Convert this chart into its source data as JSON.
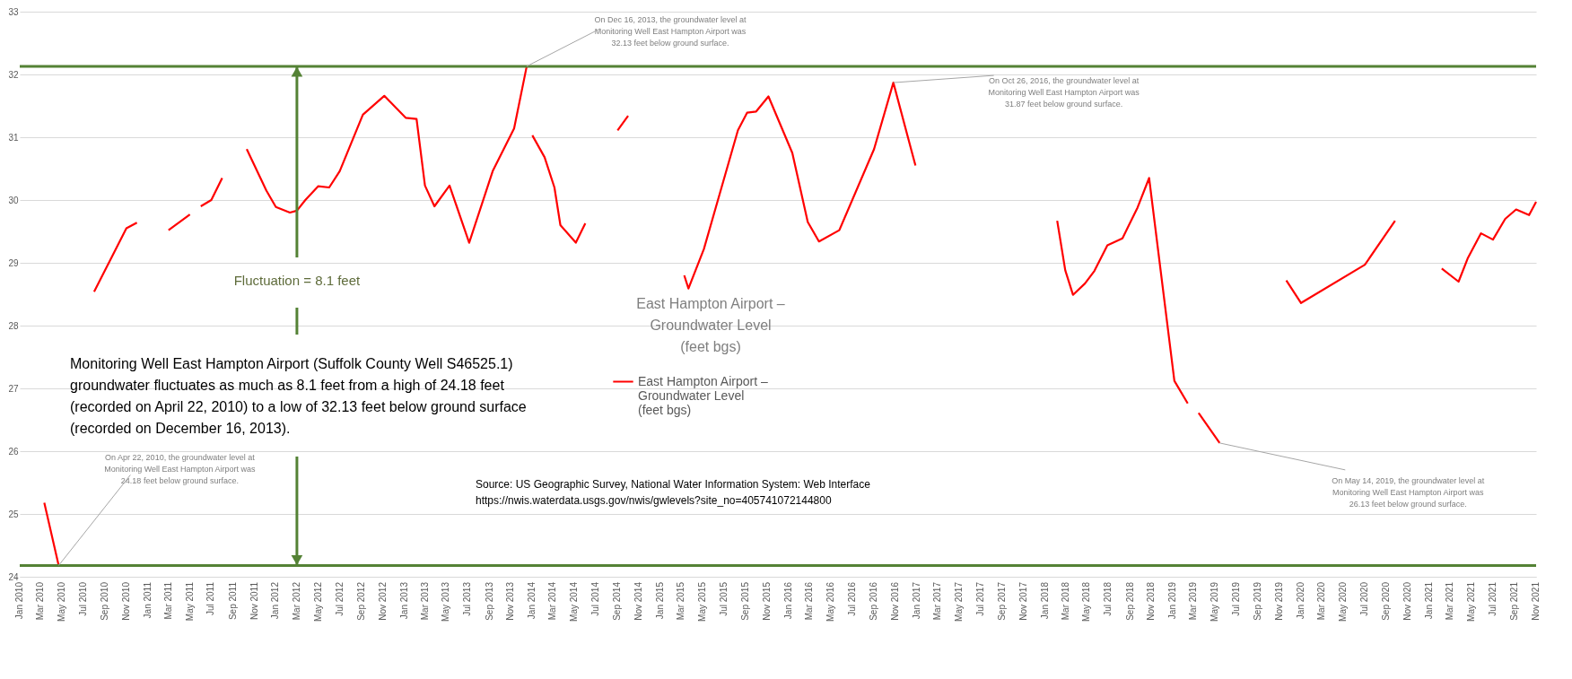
{
  "chart_data": {
    "type": "line",
    "title": "East Hampton Airport – Groundwater Level (feet bgs)",
    "series": [
      {
        "name": "East Hampton Airport – Groundwater Level (feet bgs)",
        "color": "#ff0000",
        "x": [
          "2010-03-12",
          "2010-04-22",
          "2010-06-01",
          "2010-08-01",
          "2010-11-01",
          "2010-12-01",
          "2011-01-15",
          "2011-03-01",
          "2011-05-01",
          "2011-05-20",
          "2011-06-01",
          "2011-07-01",
          "2011-08-01",
          "2011-09-01",
          "2011-10-10",
          "2011-12-05",
          "2012-01-01",
          "2012-02-10",
          "2012-03-01",
          "2012-03-25",
          "2012-05-01",
          "2012-06-01",
          "2012-07-01",
          "2012-09-05",
          "2012-11-05",
          "2013-01-05",
          "2013-02-05",
          "2013-03-01",
          "2013-03-28",
          "2013-05-10",
          "2013-07-05",
          "2013-09-10",
          "2013-11-10",
          "2013-12-16",
          "2013-12-25",
          "2014-01-01",
          "2014-02-05",
          "2014-03-05",
          "2014-03-22",
          "2014-05-05",
          "2014-06-01",
          "2014-07-01",
          "2014-09-01",
          "2014-10-01",
          "2014-12-01",
          "2015-03-10",
          "2015-03-22",
          "2015-05-05",
          "2015-08-10",
          "2015-09-05",
          "2015-10-01",
          "2015-11-05",
          "2016-01-12",
          "2016-02-25",
          "2016-03-28",
          "2016-05-25",
          "2016-09-01",
          "2016-10-26",
          "2016-12-28",
          "2017-06-01",
          "2018-02-05",
          "2018-02-28",
          "2018-03-22",
          "2018-04-25",
          "2018-05-22",
          "2018-06-28",
          "2018-08-10",
          "2018-09-22",
          "2018-10-25",
          "2019-01-05",
          "2019-02-12",
          "2019-02-25",
          "2019-03-15",
          "2019-05-14",
          "2019-08-01",
          "2019-11-20",
          "2020-01-01",
          "2020-07-01",
          "2020-09-25",
          "2020-12-01",
          "2021-02-05",
          "2021-03-25",
          "2021-04-20",
          "2021-05-28",
          "2021-07-01",
          "2021-08-05",
          "2021-09-05",
          "2021-10-12",
          "2021-11-01"
        ],
        "values": [
          25.18,
          24.18,
          null,
          28.54,
          29.55,
          29.64,
          null,
          29.52,
          29.77,
          null,
          29.9,
          30.0,
          30.35,
          null,
          30.81,
          30.15,
          29.89,
          29.8,
          29.83,
          30.0,
          30.22,
          30.2,
          30.46,
          31.36,
          31.66,
          31.31,
          31.29,
          30.23,
          29.9,
          30.23,
          29.32,
          30.46,
          31.14,
          32.13,
          null,
          31.03,
          30.68,
          30.2,
          29.6,
          29.32,
          29.63,
          null,
          31.11,
          31.34,
          null,
          28.8,
          28.59,
          29.22,
          31.11,
          31.39,
          31.41,
          31.65,
          30.75,
          29.65,
          29.34,
          29.52,
          30.81,
          31.87,
          30.55,
          null,
          29.67,
          28.88,
          28.49,
          28.67,
          28.87,
          29.28,
          29.39,
          29.88,
          30.35,
          27.12,
          26.76,
          null,
          26.61,
          26.13,
          null,
          28.72,
          28.36,
          28.97,
          29.67,
          null,
          28.91,
          28.7,
          29.07,
          29.47,
          29.37,
          29.7,
          29.85,
          29.76,
          29.97
        ]
      }
    ],
    "xlim": [
      "2010-01-01",
      "2021-11-01"
    ],
    "xticks": [
      {
        "value": "2010-01",
        "label": "Jan 2010"
      },
      {
        "value": "2010-03",
        "label": "Mar 2010"
      },
      {
        "value": "2010-05",
        "label": "May 2010"
      },
      {
        "value": "2010-07",
        "label": "Jul 2010"
      },
      {
        "value": "2010-09",
        "label": "Sep 2010"
      },
      {
        "value": "2010-11",
        "label": "Nov 2010"
      },
      {
        "value": "2011-01",
        "label": "Jan 2011"
      },
      {
        "value": "2011-03",
        "label": "Mar 2011"
      },
      {
        "value": "2011-05",
        "label": "May 2011"
      },
      {
        "value": "2011-07",
        "label": "Jul 2011"
      },
      {
        "value": "2011-09",
        "label": "Sep 2011"
      },
      {
        "value": "2011-11",
        "label": "Nov 2011"
      },
      {
        "value": "2012-01",
        "label": "Jan 2012"
      },
      {
        "value": "2012-03",
        "label": "Mar 2012"
      },
      {
        "value": "2012-05",
        "label": "May 2012"
      },
      {
        "value": "2012-07",
        "label": "Jul 2012"
      },
      {
        "value": "2012-09",
        "label": "Sep 2012"
      },
      {
        "value": "2012-11",
        "label": "Nov 2012"
      },
      {
        "value": "2013-01",
        "label": "Jan 2013"
      },
      {
        "value": "2013-03",
        "label": "Mar 2013"
      },
      {
        "value": "2013-05",
        "label": "May 2013"
      },
      {
        "value": "2013-07",
        "label": "Jul 2013"
      },
      {
        "value": "2013-09",
        "label": "Sep 2013"
      },
      {
        "value": "2013-11",
        "label": "Nov 2013"
      },
      {
        "value": "2014-01",
        "label": "Jan 2014"
      },
      {
        "value": "2014-03",
        "label": "Mar 2014"
      },
      {
        "value": "2014-05",
        "label": "May 2014"
      },
      {
        "value": "2014-07",
        "label": "Jul 2014"
      },
      {
        "value": "2014-09",
        "label": "Sep 2014"
      },
      {
        "value": "2014-11",
        "label": "Nov 2014"
      },
      {
        "value": "2015-01",
        "label": "Jan 2015"
      },
      {
        "value": "2015-03",
        "label": "Mar 2015"
      },
      {
        "value": "2015-05",
        "label": "May 2015"
      },
      {
        "value": "2015-07",
        "label": "Jul 2015"
      },
      {
        "value": "2015-09",
        "label": "Sep 2015"
      },
      {
        "value": "2015-11",
        "label": "Nov 2015"
      },
      {
        "value": "2016-01",
        "label": "Jan 2016"
      },
      {
        "value": "2016-03",
        "label": "Mar 2016"
      },
      {
        "value": "2016-05",
        "label": "May 2016"
      },
      {
        "value": "2016-07",
        "label": "Jul 2016"
      },
      {
        "value": "2016-09",
        "label": "Sep 2016"
      },
      {
        "value": "2016-11",
        "label": "Nov 2016"
      },
      {
        "value": "2017-01",
        "label": "Jan 2017"
      },
      {
        "value": "2017-03",
        "label": "Mar 2017"
      },
      {
        "value": "2017-05",
        "label": "May 2017"
      },
      {
        "value": "2017-07",
        "label": "Jul 2017"
      },
      {
        "value": "2017-09",
        "label": "Sep 2017"
      },
      {
        "value": "2017-11",
        "label": "Nov 2017"
      },
      {
        "value": "2018-01",
        "label": "Jan 2018"
      },
      {
        "value": "2018-03",
        "label": "Mar 2018"
      },
      {
        "value": "2018-05",
        "label": "May 2018"
      },
      {
        "value": "2018-07",
        "label": "Jul 2018"
      },
      {
        "value": "2018-09",
        "label": "Sep 2018"
      },
      {
        "value": "2018-11",
        "label": "Nov 2018"
      },
      {
        "value": "2019-01",
        "label": "Jan 2019"
      },
      {
        "value": "2019-03",
        "label": "Mar 2019"
      },
      {
        "value": "2019-05",
        "label": "May 2019"
      },
      {
        "value": "2019-07",
        "label": "Jul 2019"
      },
      {
        "value": "2019-09",
        "label": "Sep 2019"
      },
      {
        "value": "2019-11",
        "label": "Nov 2019"
      },
      {
        "value": "2020-01",
        "label": "Jan 2020"
      },
      {
        "value": "2020-03",
        "label": "Mar 2020"
      },
      {
        "value": "2020-05",
        "label": "May 2020"
      },
      {
        "value": "2020-07",
        "label": "Jul 2020"
      },
      {
        "value": "2020-09",
        "label": "Sep 2020"
      },
      {
        "value": "2020-11",
        "label": "Nov 2020"
      },
      {
        "value": "2021-01",
        "label": "Jan 2021"
      },
      {
        "value": "2021-03",
        "label": "Mar 2021"
      },
      {
        "value": "2021-05",
        "label": "May 2021"
      },
      {
        "value": "2021-07",
        "label": "Jul 2021"
      },
      {
        "value": "2021-09",
        "label": "Sep 2021"
      },
      {
        "value": "2021-11",
        "label": "Nov 2021"
      }
    ],
    "ylim": [
      24,
      33
    ],
    "yticks": [
      24,
      25,
      26,
      27,
      28,
      29,
      30,
      31,
      32,
      33
    ],
    "grid": "y",
    "legend": "center",
    "ref_lines": [
      {
        "axis": "y",
        "value": 32.13,
        "color": "#548235"
      },
      {
        "axis": "y",
        "value": 24.18,
        "color": "#548235"
      }
    ],
    "annotations": [
      {
        "text": "On Dec 16, 2013, the groundwater level at Monitoring Well East Hampton Airport was 32.13 feet below ground surface.",
        "x": "2013-12-16",
        "y": 32.13
      },
      {
        "text": "On Oct 26, 2016, the groundwater level at Monitoring Well East Hampton Airport was 31.87 feet below ground surface.",
        "x": "2016-10-26",
        "y": 31.87
      },
      {
        "text": "On Apr 22, 2010, the groundwater level at Monitoring Well East Hampton Airport was 24.18 feet below ground surface.",
        "x": "2010-04-22",
        "y": 24.18
      },
      {
        "text": "On May 14, 2019, the groundwater level at Monitoring Well East Hampton Airport was 26.13 feet below ground surface.",
        "x": "2019-05-14",
        "y": 26.13
      },
      {
        "text": "Fluctuation = 8.1 feet",
        "x": "2012-03-01",
        "y": 32.13
      },
      "Monitoring Well East Hampton Airport (Suffolk County Well S46525.1) groundwater fluctuates as much as 8.1 feet from a high of 24.18 feet (recorded on April 22, 2010) to a low of 32.13 feet below ground surface (recorded on December 16, 2013).",
      "Source: US Geographic Survey, National Water Information System: Web Interface",
      "https://nwis.waterdata.usgs.gov/nwis/gwlevels?site_no=405741072144800"
    ]
  }
}
